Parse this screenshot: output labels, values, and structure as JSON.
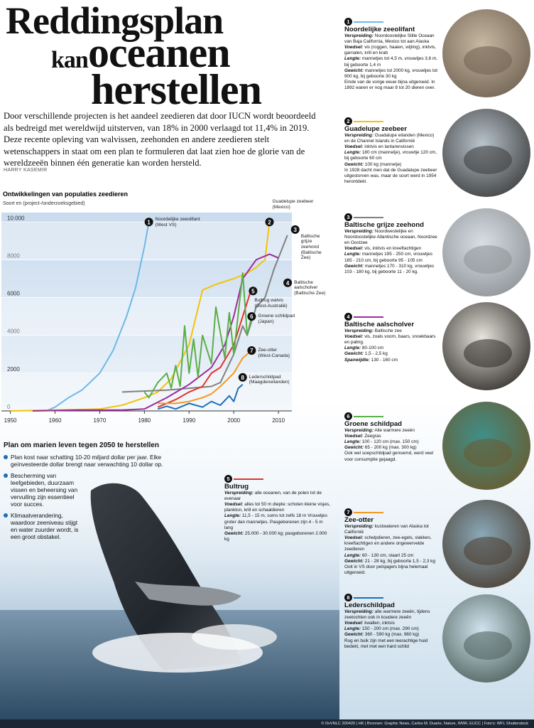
{
  "headline": [
    "Reddingsplan",
    "kan",
    "oceanen",
    "herstellen"
  ],
  "intro": "Door verschillende projecten is het aandeel zeedieren dat door IUCN wordt beoordeeld als bedreigd met wereldwijd uitsterven, van 18% in 2000 verlaagd tot 11,4% in 2019. Deze recente opleving van walvissen, zeehonden en andere zeedieren stelt wetenschappers in staat om een plan te formuleren dat laat zien hoe de glorie van de wereldzeeën binnen één generatie kan worden hersteld.",
  "byline": "HARRY KASEMIR",
  "chart_data": {
    "type": "line",
    "title": "Ontwikkelingen van populaties zeedieren",
    "subtitle": "Soort en (project-/onderzoeksgebied)",
    "xlim": [
      1948,
      2013
    ],
    "xticks": [
      1950,
      1960,
      1970,
      1980,
      1990,
      2000,
      2010
    ],
    "ylim": [
      0,
      10500
    ],
    "yticks": [
      0,
      2000,
      4000,
      6000,
      8000,
      {
        "value": 10000,
        "label": "10.000"
      }
    ],
    "grid": true,
    "series": [
      {
        "number": 1,
        "name": "Noordelijke zeeolifant",
        "region": "(West VS)",
        "color": "#6fb8e6",
        "x": [
          1958,
          1960,
          1963,
          1966,
          1970,
          1973,
          1976,
          1978,
          1980,
          1981
        ],
        "values": [
          0,
          200,
          700,
          1100,
          2000,
          3200,
          5000,
          6500,
          8700,
          10000
        ]
      },
      {
        "number": 2,
        "name": "Guadelupe zeebeer",
        "region": "(Mexico)",
        "color": "#f4c20d",
        "x": [
          1950,
          1960,
          1970,
          1975,
          1980,
          1983,
          1986,
          1990,
          1993,
          1996,
          2000,
          2003,
          2005,
          2007,
          2008
        ],
        "values": [
          0,
          50,
          100,
          300,
          700,
          1000,
          1700,
          3500,
          6400,
          6700,
          7000,
          7300,
          7600,
          8000,
          10000
        ]
      },
      {
        "number": 3,
        "name": "Baltische grijze zeehond",
        "region": "(Baltische Zee)",
        "color": "#808080",
        "x": [
          1975,
          1985,
          1990,
          1995,
          1997,
          2000,
          2002,
          2003,
          2005,
          2007,
          2009,
          2012
        ],
        "values": [
          1000,
          1100,
          1200,
          1300,
          1500,
          3000,
          4500,
          4000,
          5500,
          6000,
          7500,
          9300
        ]
      },
      {
        "number": 4,
        "name": "Baltische aalscholver",
        "region": "(Baltische Zee)",
        "color": "#9b2d9e",
        "x": [
          1955,
          1965,
          1975,
          1980,
          1985,
          1990,
          1995,
          1998,
          2000,
          2002,
          2005,
          2008,
          2010
        ],
        "values": [
          0,
          50,
          50,
          100,
          700,
          1400,
          2300,
          3500,
          5000,
          7000,
          8000,
          8300,
          8100
        ]
      },
      {
        "number": 5,
        "name": "Bultrug walvis",
        "region": "(Oost-Australië)",
        "color": "#e4312b",
        "x": [
          1983,
          1987,
          1990,
          1993,
          1995,
          1997,
          2000,
          2002,
          2004
        ],
        "values": [
          200,
          600,
          1000,
          1300,
          2000,
          2300,
          3500,
          5000,
          6500
        ]
      },
      {
        "number": 6,
        "name": "Groene schildpad",
        "region": "(Japan)",
        "color": "#5aae48",
        "x": [
          1980,
          1981,
          1983,
          1985,
          1986,
          1987,
          1988,
          1989,
          1990,
          1991,
          1992,
          1993,
          1995,
          1996,
          1998,
          1999,
          2000,
          2002,
          2003,
          2004
        ],
        "values": [
          1000,
          700,
          1500,
          2000,
          1200,
          2400,
          1300,
          4500,
          2000,
          3800,
          1800,
          4000,
          2500,
          5500,
          2800,
          5200,
          3000,
          7300,
          4000,
          5000
        ]
      },
      {
        "number": 7,
        "name": "Zee-otter",
        "region": "(West-Canada)",
        "color": "#f39a1f",
        "x": [
          1983,
          1987,
          1990,
          1993,
          1995,
          1997,
          2000,
          2002,
          2004
        ],
        "values": [
          400,
          400,
          500,
          700,
          900,
          1300,
          2000,
          2800,
          3200
        ]
      },
      {
        "number": 8,
        "name": "Lederschildpad",
        "region": "(Maagdeneilanden)",
        "color": "#1d6fb8",
        "x": [
          1983,
          1985,
          1987,
          1990,
          1993,
          1995,
          1997,
          1999,
          2000,
          2001,
          2002
        ],
        "values": [
          100,
          250,
          100,
          400,
          200,
          500,
          300,
          800,
          500,
          1200,
          1400
        ]
      }
    ]
  },
  "plan": {
    "title": "Plan om marien leven tegen 2050 te herstellen",
    "bullets": [
      "Plan kost naar schatting 10-20 miljard dollar per jaar. Elke geïnvesteerde dollar brengt naar verwachting 10 dollar op.",
      "Bescherming van leefgebieden, duurzaam vissen en beheersing van vervuiling zijn essentieel voor succes.",
      "Klimaatverandering, waardoor zeeniveau stijgt en water zuurder wordt, is een groot obstakel."
    ]
  },
  "species": [
    {
      "number": 1,
      "name": "Noordelijke zeeolifant",
      "color": "#6fb8e6",
      "facts": [
        {
          "label": "Verspreiding:",
          "text": "Noordoostelijke Stille Oceaan van Baja California, Mexico tot aan Alaska"
        },
        {
          "label": "Voedsel:",
          "text": "vis (roggen, haaien, wijting), inktvis, garnalen, krill en krab"
        },
        {
          "label": "Lengte:",
          "text": "mannetjes tot 4,5 m, vrouwtjes 3,6 m, bij geboorte 1,4 m"
        },
        {
          "label": "Gewicht:",
          "text": "mannetjes tot 2000 kg, vrouwtjes tot 900 kg, bij geboorte 30 kg"
        }
      ],
      "note": "Einde van de vorige eeuw bijna uitgeroeid. In 1892 waren er nog maar 8 tot 20 dieren over."
    },
    {
      "number": 2,
      "name": "Guadelupe zeebeer",
      "color": "#f4c20d",
      "facts": [
        {
          "label": "Verspreiding:",
          "text": "Guadalupe eilanden (Mexico) en de Channel Islands in Californië"
        },
        {
          "label": "Voedsel:",
          "text": "inktvis en lantarenvissen"
        },
        {
          "label": "Lengte:",
          "text": "180 cm (mannetje), vrouwtje 120 cm, bij geboorte 60 cm"
        },
        {
          "label": "Gewicht:",
          "text": "100 kg (mannetje)"
        }
      ],
      "note": "In 1928 dacht men dat de Guadalupe zeebeer uitgestorven was, maar de soort werd in 1954 herontdekt."
    },
    {
      "number": 3,
      "name": "Baltische grijze zeehond",
      "color": "#808080",
      "facts": [
        {
          "label": "Verspreiding:",
          "text": "Noordwestelijke en Noordoostelijke Atlantische oceaan, Noordzee en Oostzee"
        },
        {
          "label": "Voedsel:",
          "text": "vis, inktvis en kreeftachtigen"
        },
        {
          "label": "Lengte:",
          "text": "mannetjes 195 - 250 cm, vrouwtjes 165 - 210 cm, bij geboorte 95 - 105 cm"
        },
        {
          "label": "Gewicht:",
          "text": "mannetjes 170 - 310 kg, vrouwtjes 103 - 180 kg, bij geboorte 11 - 20 kg."
        }
      ]
    },
    {
      "number": 4,
      "name": "Baltische aalscholver",
      "color": "#9b2d9e",
      "facts": [
        {
          "label": "Verspreiding:",
          "text": "Baltische zee"
        },
        {
          "label": "Voedsel:",
          "text": "vis, zoals voorn, baars, snoekbaars en paling."
        },
        {
          "label": "Lengte:",
          "text": "80-100 cm"
        },
        {
          "label": "Gewicht:",
          "text": "1,5 - 2,5 kg"
        },
        {
          "label": "Spanwijdte:",
          "text": "130 - 160 cm"
        }
      ]
    },
    {
      "number": 5,
      "name": "Bultrug",
      "color": "#e4312b",
      "facts": [
        {
          "label": "Verspreiding:",
          "text": "alle oceanen, van de polen tot de evenaar"
        },
        {
          "label": "Voedsel:",
          "text": "alles tot 50 m diepte: scholen kleine visjes, plankton, krill en schaaldieren"
        },
        {
          "label": "Lengte:",
          "text": "11,5 - 15 m, soms tot zelfs 18 m Vrouwtjes groter dan mannetjes. Pasgeborenen zijn 4 - 5 m lang"
        },
        {
          "label": "Gewicht:",
          "text": "25.000 - 30.000 kg; pasgeborenen 2.000 kg"
        }
      ]
    },
    {
      "number": 6,
      "name": "Groene schildpad",
      "color": "#5aae48",
      "facts": [
        {
          "label": "Verspreiding:",
          "text": "Alle warmere zeeën"
        },
        {
          "label": "Voedsel:",
          "text": "Zeegras"
        },
        {
          "label": "Lengte:",
          "text": "100 - 120 cm (max. 150 cm)"
        },
        {
          "label": "Gewicht:",
          "text": "65 - 200 kg (max. 300 kg)"
        }
      ],
      "note": "Ook wel soepschildpad genoemd, werd veel voor consumptie gejaagd."
    },
    {
      "number": 7,
      "name": "Zee-otter",
      "color": "#f39a1f",
      "facts": [
        {
          "label": "Verspreiding:",
          "text": "kustwateren van Alaska tot Californië"
        },
        {
          "label": "Voedsel:",
          "text": "schelpdieren, zee-egels, slakken, kreeftachtigen en andere ongewervelde zeedieren"
        },
        {
          "label": "Lengte:",
          "text": "60 - 130 cm, staart 25 cm"
        },
        {
          "label": "Gewicht:",
          "text": "21 - 28 kg, bij geboorte 1,5 - 2,3 kg"
        }
      ],
      "note": "Ooit in VS door pelsjagers bijna helemaal uitgeroeid."
    },
    {
      "number": 8,
      "name": "Lederschildpad",
      "color": "#1d6fb8",
      "facts": [
        {
          "label": "Verspreiding:",
          "text": "alle warmere zeeën, tijdens zeetochten ook in koudere zeeën"
        },
        {
          "label": "Voedsel:",
          "text": "kwallen, inktvis"
        },
        {
          "label": "Lengte:",
          "text": "150 - 200 cm (max. 290 cm)"
        },
        {
          "label": "Gewicht:",
          "text": "360 - 590 kg (max. 960 kg)"
        }
      ],
      "note": "Rug en buik zijn met een leerachtige huid bedekt, met met een hard schild"
    }
  ],
  "footer": "© DvVNLC 200420 | HK | Bronnen: Graphic News, Carlos M. Duarte, Nature, WWF, EUCC | Foto's: WFL Shutterstock"
}
